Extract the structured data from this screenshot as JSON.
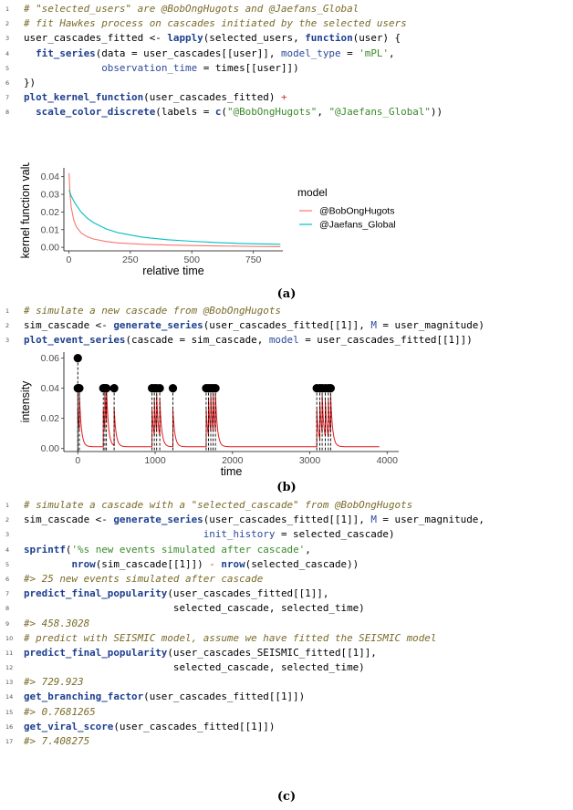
{
  "code_a": [
    [
      {
        "t": "# \"selected_users\" are @BobOngHugots and @Jaefans_Global",
        "c": "cm"
      }
    ],
    [
      {
        "t": "# fit Hawkes process on cascades initiated by the selected users",
        "c": "cm"
      }
    ],
    [
      {
        "t": "user_cascades_fitted <- "
      },
      {
        "t": "lapply",
        "c": "kw"
      },
      {
        "t": "(selected_users, "
      },
      {
        "t": "function",
        "c": "kw"
      },
      {
        "t": "(user) {"
      }
    ],
    [
      {
        "t": "  "
      },
      {
        "t": "fit_series",
        "c": "kw"
      },
      {
        "t": "(data = user_cascades[[user]], "
      },
      {
        "t": "model_type",
        "c": "arg"
      },
      {
        "t": " = "
      },
      {
        "t": "'mPL'",
        "c": "st"
      },
      {
        "t": ","
      }
    ],
    [
      {
        "t": "             "
      },
      {
        "t": "observation_time",
        "c": "arg"
      },
      {
        "t": " = times[[user]])"
      }
    ],
    [
      {
        "t": "})"
      }
    ],
    [
      {
        "t": "plot_kernel_function",
        "c": "kw"
      },
      {
        "t": "(user_cascades_fitted) "
      },
      {
        "t": "+",
        "c": "op"
      }
    ],
    [
      {
        "t": "  "
      },
      {
        "t": "scale_color_discrete",
        "c": "kw"
      },
      {
        "t": "(labels = "
      },
      {
        "t": "c",
        "c": "kw"
      },
      {
        "t": "("
      },
      {
        "t": "\"@BobOngHugots\"",
        "c": "st"
      },
      {
        "t": ", "
      },
      {
        "t": "\"@Jaefans_Global\"",
        "c": "st"
      },
      {
        "t": "))"
      }
    ]
  ],
  "caption_a": "(a)",
  "code_b": [
    [
      {
        "t": "# simulate a new cascade from @BobOngHugots",
        "c": "cm"
      }
    ],
    [
      {
        "t": "sim_cascade <- "
      },
      {
        "t": "generate_series",
        "c": "kw"
      },
      {
        "t": "(user_cascades_fitted[[1]], "
      },
      {
        "t": "M",
        "c": "arg"
      },
      {
        "t": " = user_magnitude)"
      }
    ],
    [
      {
        "t": "plot_event_series",
        "c": "kw"
      },
      {
        "t": "(cascade = sim_cascade, "
      },
      {
        "t": "model",
        "c": "arg"
      },
      {
        "t": " = user_cascades_fitted[[1]])"
      }
    ]
  ],
  "caption_b": "(b)",
  "code_c": [
    [
      {
        "t": "# simulate a cascade with a \"selected_cascade\" from @BobOngHugots",
        "c": "cm"
      }
    ],
    [
      {
        "t": "sim_cascade <- "
      },
      {
        "t": "generate_series",
        "c": "kw"
      },
      {
        "t": "(user_cascades_fitted[[1]], "
      },
      {
        "t": "M",
        "c": "arg"
      },
      {
        "t": " = user_magnitude,"
      }
    ],
    [
      {
        "t": "                              "
      },
      {
        "t": "init_history",
        "c": "arg"
      },
      {
        "t": " = selected_cascade)"
      }
    ],
    [
      {
        "t": "sprintf",
        "c": "kw"
      },
      {
        "t": "("
      },
      {
        "t": "'%s new events simulated after cascade'",
        "c": "st"
      },
      {
        "t": ","
      }
    ],
    [
      {
        "t": "        "
      },
      {
        "t": "nrow",
        "c": "kw"
      },
      {
        "t": "(sim_cascade[[1]]) "
      },
      {
        "t": "-",
        "c": "op"
      },
      {
        "t": " "
      },
      {
        "t": "nrow",
        "c": "kw"
      },
      {
        "t": "(selected_cascade))"
      }
    ],
    [
      {
        "t": "#> 25 new events simulated after cascade",
        "c": "cm"
      }
    ],
    [
      {
        "t": "predict_final_popularity",
        "c": "kw"
      },
      {
        "t": "(user_cascades_fitted[[1]],"
      }
    ],
    [
      {
        "t": "                         selected_cascade, selected_time)"
      }
    ],
    [
      {
        "t": "#> 458.3028",
        "c": "cm"
      }
    ],
    [
      {
        "t": "# predict with SEISMIC model, assume we have fitted the SEISMIC model",
        "c": "cm"
      }
    ],
    [
      {
        "t": "predict_final_popularity",
        "c": "kw"
      },
      {
        "t": "(user_cascades_SEISMIC_fitted[[1]],"
      }
    ],
    [
      {
        "t": "                         selected_cascade, selected_time)"
      }
    ],
    [
      {
        "t": "#> 729.923",
        "c": "cm"
      }
    ],
    [
      {
        "t": "get_branching_factor",
        "c": "kw"
      },
      {
        "t": "(user_cascades_fitted[[1]])"
      }
    ],
    [
      {
        "t": "#> 0.7681265",
        "c": "cm"
      }
    ],
    [
      {
        "t": "get_viral_score",
        "c": "kw"
      },
      {
        "t": "(user_cascades_fitted[[1]])"
      }
    ],
    [
      {
        "t": "#> 7.408275",
        "c": "cm"
      }
    ]
  ],
  "caption_c": "(c)",
  "chart_data": [
    {
      "type": "line",
      "xlabel": "relative time",
      "ylabel": "kernel function valu",
      "xlim": [
        -20,
        870
      ],
      "ylim": [
        -0.002,
        0.045
      ],
      "x_ticks": [
        0,
        250,
        500,
        750
      ],
      "y_ticks": [
        0.0,
        0.01,
        0.02,
        0.03,
        0.04
      ],
      "y_tick_labels": [
        "0.00",
        "0.01",
        "0.02",
        "0.03",
        "0.04"
      ],
      "legend_title": "model",
      "legend_position": "right",
      "series": [
        {
          "name": "@BobOngHugots",
          "color": "#F8766D",
          "x": [
            1,
            5,
            10,
            20,
            30,
            50,
            75,
            100,
            150,
            200,
            300,
            400,
            500,
            600,
            700,
            860
          ],
          "y": [
            0.042,
            0.03,
            0.0225,
            0.0155,
            0.0118,
            0.0082,
            0.006,
            0.0047,
            0.0033,
            0.0025,
            0.0017,
            0.0013,
            0.001,
            0.0008,
            0.0006,
            0.0004
          ]
        },
        {
          "name": "@Jaefans_Global",
          "color": "#00BFC4",
          "x": [
            1,
            10,
            25,
            50,
            75,
            100,
            150,
            200,
            300,
            400,
            500,
            600,
            700,
            860
          ],
          "y": [
            0.0325,
            0.029,
            0.025,
            0.02,
            0.0165,
            0.014,
            0.0105,
            0.0083,
            0.0057,
            0.0043,
            0.0034,
            0.0027,
            0.0022,
            0.0017
          ]
        }
      ]
    },
    {
      "type": "line",
      "xlabel": "time",
      "ylabel": "intensity",
      "xlim": [
        -180,
        4150
      ],
      "ylim": [
        -0.002,
        0.064
      ],
      "x_ticks": [
        0,
        1000,
        2000,
        3000,
        4000
      ],
      "y_ticks": [
        0.0,
        0.02,
        0.04,
        0.06
      ],
      "y_tick_labels": [
        "0.00",
        "0.02",
        "0.04",
        "0.06"
      ],
      "line_color": "#E41A1C",
      "baseline": 0.0012,
      "decay_scale": 25,
      "line_end": 3900,
      "events": [
        {
          "t": 0,
          "m": 0.06
        },
        {
          "t": 0,
          "m": 0.04
        },
        {
          "t": 20,
          "m": 0.04
        },
        {
          "t": 330,
          "m": 0.04
        },
        {
          "t": 350,
          "m": 0.04
        },
        {
          "t": 370,
          "m": 0.04
        },
        {
          "t": 470,
          "m": 0.04
        },
        {
          "t": 960,
          "m": 0.04
        },
        {
          "t": 990,
          "m": 0.04
        },
        {
          "t": 1020,
          "m": 0.04
        },
        {
          "t": 1060,
          "m": 0.04
        },
        {
          "t": 1230,
          "m": 0.04
        },
        {
          "t": 1660,
          "m": 0.04
        },
        {
          "t": 1690,
          "m": 0.04
        },
        {
          "t": 1720,
          "m": 0.04
        },
        {
          "t": 1750,
          "m": 0.04
        },
        {
          "t": 1780,
          "m": 0.04
        },
        {
          "t": 3090,
          "m": 0.04
        },
        {
          "t": 3130,
          "m": 0.04
        },
        {
          "t": 3160,
          "m": 0.04
        },
        {
          "t": 3200,
          "m": 0.04
        },
        {
          "t": 3240,
          "m": 0.04
        },
        {
          "t": 3270,
          "m": 0.04
        }
      ]
    }
  ]
}
